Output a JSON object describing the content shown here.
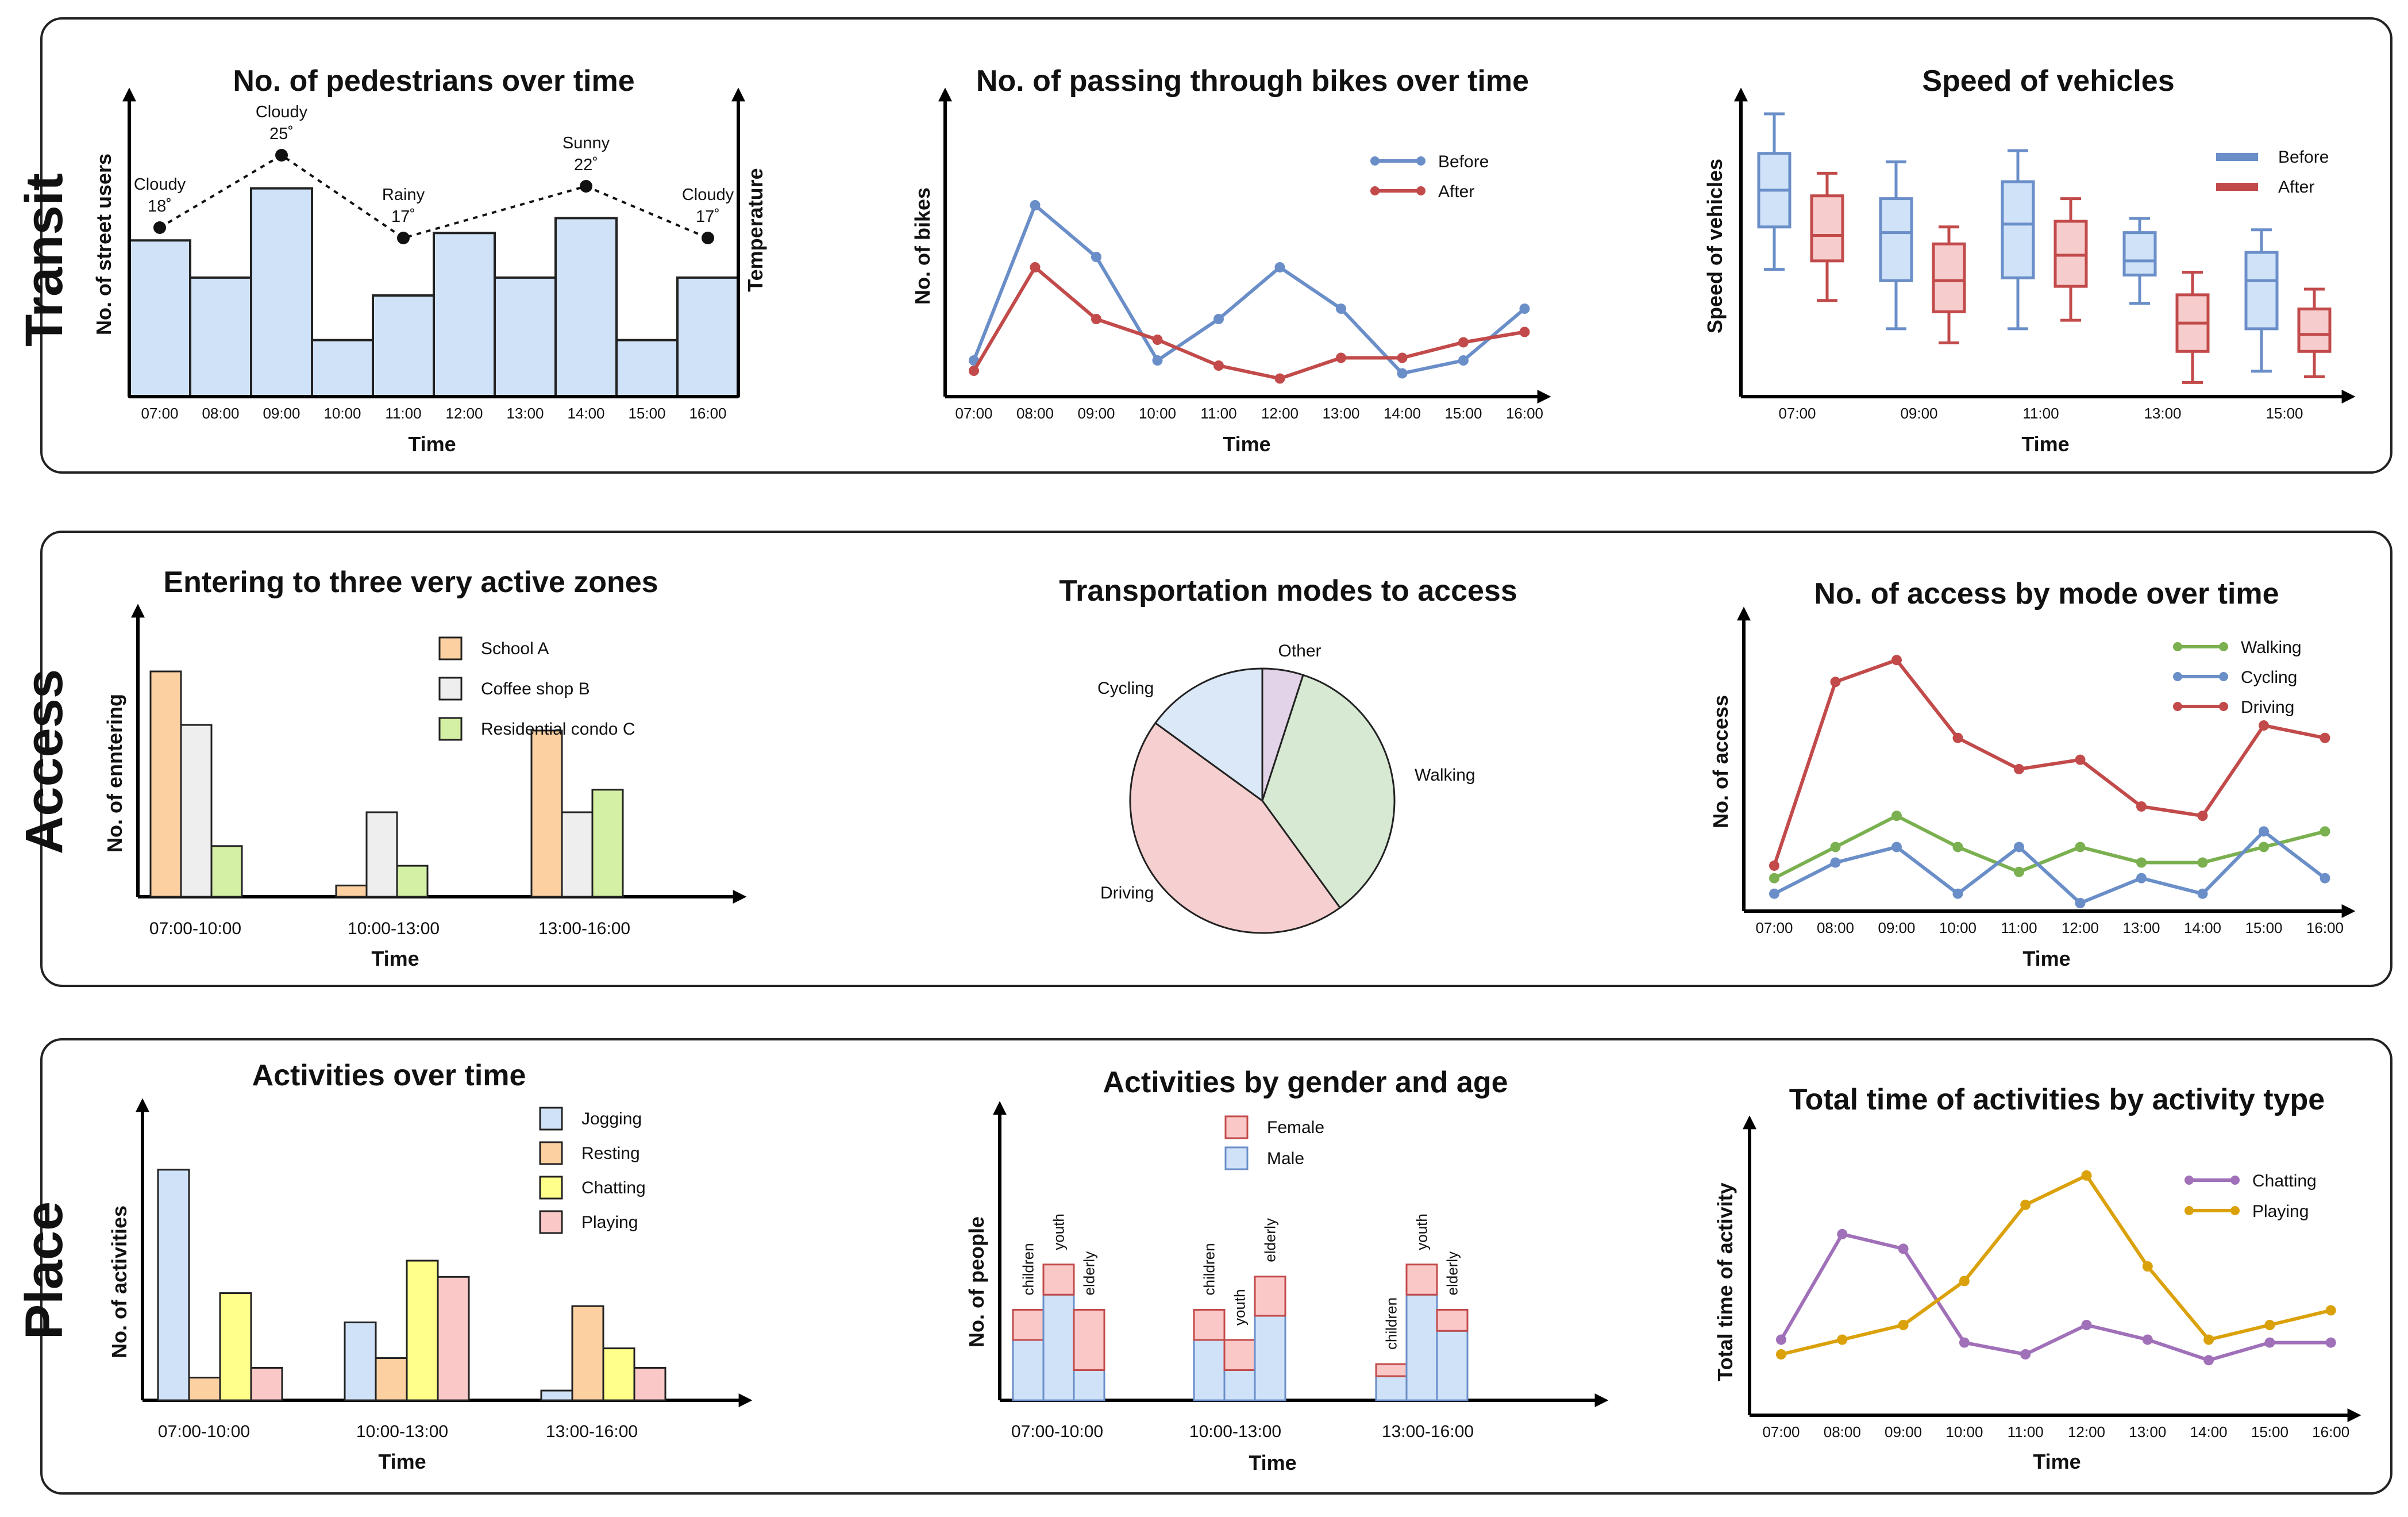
{
  "rows": {
    "transit": "Transit",
    "access": "Access",
    "place": "Place"
  },
  "colors": {
    "blue_fill": "#cfe2f8",
    "blue_line": "#6a8ec8",
    "red_fill": "#f7cccc",
    "red_line": "#c24a4a",
    "orange_fill": "#fcd0a1",
    "gray_fill": "#eeeeee",
    "light_green_fill": "#d4f0a4",
    "yellow_fill": "#ffff8a",
    "pink_fill": "#fbc8c8",
    "green_line": "#7ab04f",
    "purple_line": "#a070b8",
    "gold_line": "#dba10a",
    "pie_other": "#e2d3e8",
    "pie_walking": "#d7e8d3",
    "pie_driving": "#f6d0d0",
    "pie_cycling": "#dbe8f8"
  },
  "chart_data": [
    {
      "id": "pedestrians",
      "type": "bar",
      "title": "No. of pedestrians over time",
      "xlabel": "Time",
      "ylabel": "No. of street users",
      "y2label": "Temperature",
      "categories": [
        "07:00",
        "08:00",
        "09:00",
        "10:00",
        "11:00",
        "12:00",
        "13:00",
        "14:00",
        "15:00",
        "16:00"
      ],
      "values": [
        105,
        80,
        140,
        38,
        68,
        110,
        80,
        120,
        38,
        80
      ],
      "ylim": [
        0,
        170
      ],
      "weather": [
        {
          "at": "07:00",
          "label": "Cloudy",
          "temp": "18˚",
          "value": 18
        },
        {
          "at": "09:00",
          "label": "Cloudy",
          "temp": "25˚",
          "value": 25
        },
        {
          "at": "11:00",
          "label": "Rainy",
          "temp": "17˚",
          "value": 17
        },
        {
          "at": "14:00",
          "label": "Sunny",
          "temp": "22˚",
          "value": 22
        },
        {
          "at": "16:00",
          "label": "Cloudy",
          "temp": "17˚",
          "value": 17
        }
      ]
    },
    {
      "id": "bikes",
      "type": "line",
      "title": "No. of passing through bikes over time",
      "xlabel": "Time",
      "ylabel": "No. of bikes",
      "categories": [
        "07:00",
        "08:00",
        "09:00",
        "10:00",
        "11:00",
        "12:00",
        "13:00",
        "14:00",
        "15:00",
        "16:00"
      ],
      "ylim": [
        0,
        100
      ],
      "legend": "top-right",
      "series": [
        {
          "name": "Before",
          "values": [
            14,
            74,
            54,
            14,
            30,
            50,
            34,
            9,
            14,
            34
          ]
        },
        {
          "name": "After",
          "values": [
            10,
            50,
            30,
            22,
            12,
            7,
            15,
            15,
            21,
            25
          ]
        }
      ]
    },
    {
      "id": "speed",
      "type": "box",
      "title": "Speed of vehicles",
      "ylabel": "Speed of vehicles",
      "xlabel": "Time",
      "tick_labels": [
        "07:00",
        "09:00",
        "11:00",
        "13:00",
        "15:00"
      ],
      "ylim": [
        0,
        100
      ],
      "legend": "top-right",
      "series": [
        {
          "name": "Before",
          "boxes": [
            {
              "min": 45,
              "q1": 60,
              "median": 73,
              "q3": 86,
              "max": 100
            },
            {
              "min": 24,
              "q1": 41,
              "median": 58,
              "q3": 70,
              "max": 83
            },
            {
              "min": 24,
              "q1": 42,
              "median": 61,
              "q3": 76,
              "max": 87
            },
            {
              "min": 33,
              "q1": 43,
              "median": 48,
              "q3": 58,
              "max": 63
            },
            {
              "min": 9,
              "q1": 24,
              "median": 41,
              "q3": 51,
              "max": 59
            }
          ]
        },
        {
          "name": "After",
          "boxes": [
            {
              "min": 34,
              "q1": 48,
              "median": 57,
              "q3": 71,
              "max": 79
            },
            {
              "min": 19,
              "q1": 30,
              "median": 41,
              "q3": 54,
              "max": 60
            },
            {
              "min": 27,
              "q1": 39,
              "median": 50,
              "q3": 62,
              "max": 70
            },
            {
              "min": 5,
              "q1": 16,
              "median": 26,
              "q3": 36,
              "max": 44
            },
            {
              "min": 7,
              "q1": 16,
              "median": 22,
              "q3": 31,
              "max": 38
            }
          ]
        }
      ]
    },
    {
      "id": "entering",
      "type": "bar",
      "title": "Entering to three very active zones",
      "xlabel": "Time",
      "ylabel": "No. of enntering",
      "categories": [
        "07:00-10:00",
        "10:00-13:00",
        "13:00-16:00"
      ],
      "ylim": [
        0,
        100
      ],
      "legend": "top",
      "series": [
        {
          "name": "School A",
          "values": [
            80,
            4,
            59
          ]
        },
        {
          "name": "Coffee  shop B",
          "values": [
            61,
            30,
            30
          ]
        },
        {
          "name": "Residential condo C",
          "values": [
            18,
            11,
            38
          ]
        }
      ]
    },
    {
      "id": "modes",
      "type": "pie",
      "title": "Transportation modes to access",
      "slices": [
        {
          "label": "Other",
          "value": 5
        },
        {
          "label": "Walking",
          "value": 35
        },
        {
          "label": "Driving",
          "value": 45
        },
        {
          "label": "Cycling",
          "value": 15
        }
      ]
    },
    {
      "id": "access",
      "type": "line",
      "title": "No. of access by mode over time",
      "xlabel": "Time",
      "ylabel": "No. of access",
      "categories": [
        "07:00",
        "08:00",
        "09:00",
        "10:00",
        "11:00",
        "12:00",
        "13:00",
        "14:00",
        "15:00",
        "16:00"
      ],
      "ylim": [
        0,
        100
      ],
      "legend": "top",
      "series": [
        {
          "name": "Walking",
          "values": [
            8,
            18,
            28,
            18,
            10,
            18,
            13,
            13,
            18,
            23
          ]
        },
        {
          "name": "Cycling",
          "values": [
            3,
            13,
            18,
            3,
            18,
            0,
            8,
            3,
            23,
            8
          ]
        },
        {
          "name": "Driving",
          "values": [
            12,
            71,
            78,
            53,
            43,
            46,
            31,
            28,
            57,
            53
          ]
        }
      ]
    },
    {
      "id": "activities",
      "type": "bar",
      "title": "Activities over time",
      "xlabel": "Time",
      "ylabel": "No. of activities",
      "categories": [
        "07:00-10:00",
        "10:00-13:00",
        "13:00-16:00"
      ],
      "ylim": [
        0,
        100
      ],
      "legend": "top",
      "series": [
        {
          "name": "Jogging",
          "values": [
            71,
            24,
            3
          ]
        },
        {
          "name": "Resting",
          "values": [
            7,
            13,
            29
          ]
        },
        {
          "name": "Chatting",
          "values": [
            33,
            43,
            16
          ]
        },
        {
          "name": "Playing",
          "values": [
            10,
            38,
            10
          ]
        }
      ]
    },
    {
      "id": "gender_age",
      "type": "stacked-bar",
      "title": "Activities by gender and age",
      "xlabel": "Time",
      "ylabel": "No. of people",
      "categories": [
        "07:00-10:00",
        "10:00-13:00",
        "13:00-16:00"
      ],
      "subgroups": [
        "children",
        "youth",
        "elderly"
      ],
      "ylim": [
        0,
        100
      ],
      "legend": "top",
      "series": [
        {
          "name": "Female",
          "values": [
            [
              10,
              10,
              20
            ],
            [
              10,
              10,
              13
            ],
            [
              4,
              10,
              7
            ]
          ]
        },
        {
          "name": "Male",
          "values": [
            [
              20,
              35,
              10
            ],
            [
              20,
              10,
              28
            ],
            [
              8,
              35,
              23
            ]
          ]
        }
      ]
    },
    {
      "id": "total_time",
      "type": "line",
      "title": "Total time of activities by activity type",
      "xlabel": "Time",
      "ylabel": "Total time of activity",
      "categories": [
        "07:00",
        "08:00",
        "09:00",
        "10:00",
        "11:00",
        "12:00",
        "13:00",
        "14:00",
        "15:00",
        "16:00"
      ],
      "ylim": [
        0,
        100
      ],
      "legend": "top-right",
      "series": [
        {
          "name": "Chatting",
          "values": [
            15,
            51,
            46,
            14,
            10,
            20,
            15,
            8,
            14,
            14
          ]
        },
        {
          "name": "Playing",
          "values": [
            10,
            15,
            20,
            35,
            61,
            71,
            40,
            15,
            20,
            25
          ]
        }
      ]
    }
  ]
}
